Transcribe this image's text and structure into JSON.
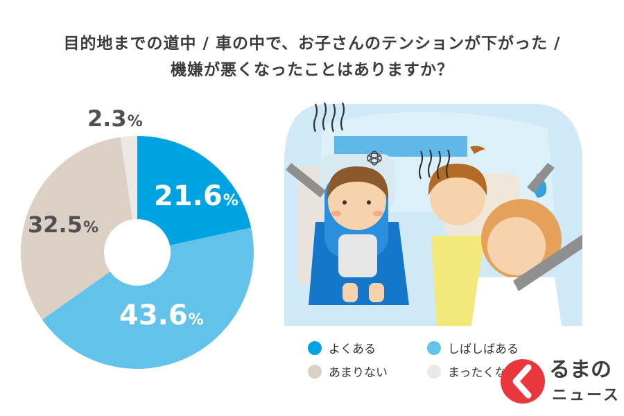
{
  "title_lines": [
    "目的地までの道中 / 車の中で、お子さんのテンションが下がった /",
    "機嫌が悪くなったことはありますか？"
  ],
  "chart_data": {
    "type": "pie",
    "donut": true,
    "categories": [
      "よくある",
      "しばしばある",
      "あまりない",
      "まったくない"
    ],
    "values": [
      21.6,
      43.6,
      32.5,
      2.3
    ],
    "value_labels": [
      "21.6",
      "43.6",
      "32.5",
      "2.3"
    ],
    "unit": "%",
    "colors": [
      "#00a3e2",
      "#62c2ea",
      "#dbd0c3",
      "#ece8e3"
    ],
    "legend_placement": "bottom-right",
    "start_angle": "top, clockwise"
  },
  "legend": [
    {
      "label": "よくある",
      "color": "#00a3e2"
    },
    {
      "label": "しばしばある",
      "color": "#62c2ea"
    },
    {
      "label": "あまりない",
      "color": "#dbd0c3"
    },
    {
      "label": "まったくない",
      "color": "#ece8e3"
    }
  ],
  "logo": {
    "main": "るまの",
    "sub": "ニュース",
    "color": "#e8383d"
  }
}
